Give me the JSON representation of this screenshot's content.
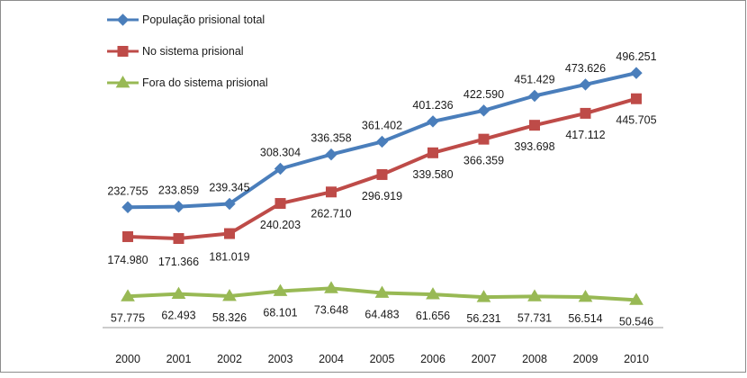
{
  "chart_data": {
    "type": "line",
    "title": "",
    "xlabel": "",
    "ylabel": "",
    "categories": [
      "2000",
      "2001",
      "2002",
      "2003",
      "2004",
      "2005",
      "2006",
      "2007",
      "2008",
      "2009",
      "2010"
    ],
    "ylim": [
      0,
      550000
    ],
    "grid": false,
    "legend_position": "top-left",
    "series": [
      {
        "name": "População prisional total",
        "color": "#4a7ebb",
        "marker": "diamond",
        "values": [
          232755,
          233859,
          239345,
          308304,
          336358,
          361402,
          401236,
          422590,
          451429,
          473626,
          496251
        ],
        "labels": [
          "232.755",
          "233.859",
          "239.345",
          "308.304",
          "336.358",
          "361.402",
          "401.236",
          "422.590",
          "451.429",
          "473.626",
          "496.251"
        ]
      },
      {
        "name": "No sistema prisional",
        "color": "#be4b48",
        "marker": "square",
        "values": [
          174980,
          171366,
          181019,
          240203,
          262710,
          296919,
          339580,
          366359,
          393698,
          417112,
          445705
        ],
        "labels": [
          "174.980",
          "171.366",
          "181.019",
          "240.203",
          "262.710",
          "296.919",
          "339.580",
          "366.359",
          "393.698",
          "417.112",
          "445.705"
        ]
      },
      {
        "name": "Fora do sistema prisional",
        "color": "#98b954",
        "marker": "triangle",
        "values": [
          57775,
          62493,
          58326,
          68101,
          73648,
          64483,
          61656,
          56231,
          57731,
          56514,
          50546
        ],
        "labels": [
          "57.775",
          "62.493",
          "58.326",
          "68.101",
          "73.648",
          "64.483",
          "61.656",
          "56.231",
          "57.731",
          "56.514",
          "50.546"
        ]
      }
    ]
  }
}
